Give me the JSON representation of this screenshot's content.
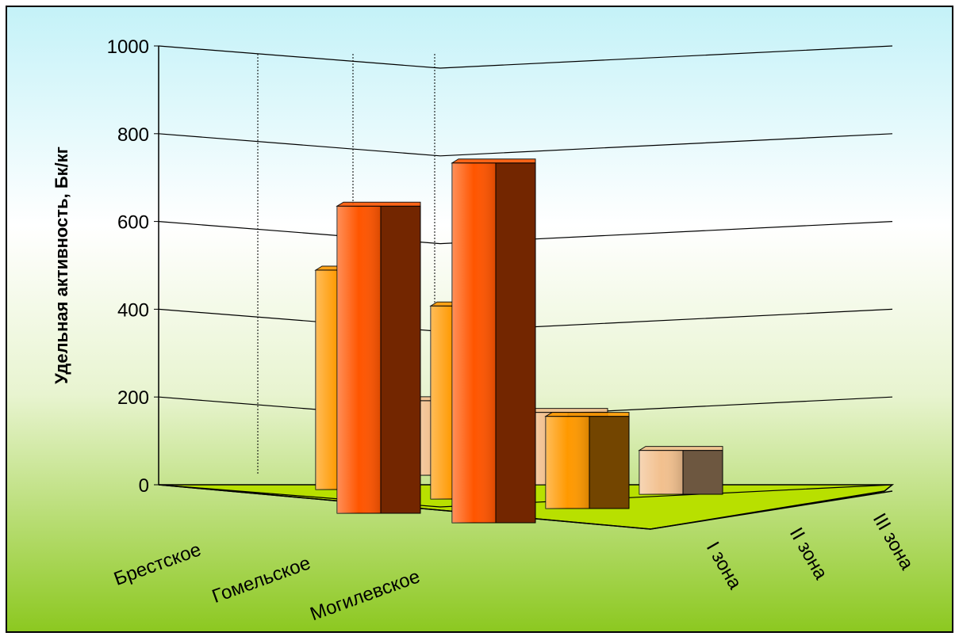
{
  "chart_data": {
    "type": "bar3d",
    "y_label": "Удельная активность, Бк/кг",
    "categories": [
      "Брестское",
      "Гомельское",
      "Могилевское"
    ],
    "series": [
      {
        "name": "I зона",
        "color": "#f2c08e",
        "values": [
          170,
          165,
          100
        ]
      },
      {
        "name": "II зона",
        "color": "#ff9900",
        "values": [
          500,
          440,
          210
        ]
      },
      {
        "name": "III зона",
        "color": "#ff5500",
        "values": [
          null,
          700,
          820
        ]
      }
    ],
    "ylim": [
      0,
      1000
    ],
    "yticks": [
      0,
      200,
      400,
      600,
      800,
      1000
    ],
    "grid": true
  }
}
